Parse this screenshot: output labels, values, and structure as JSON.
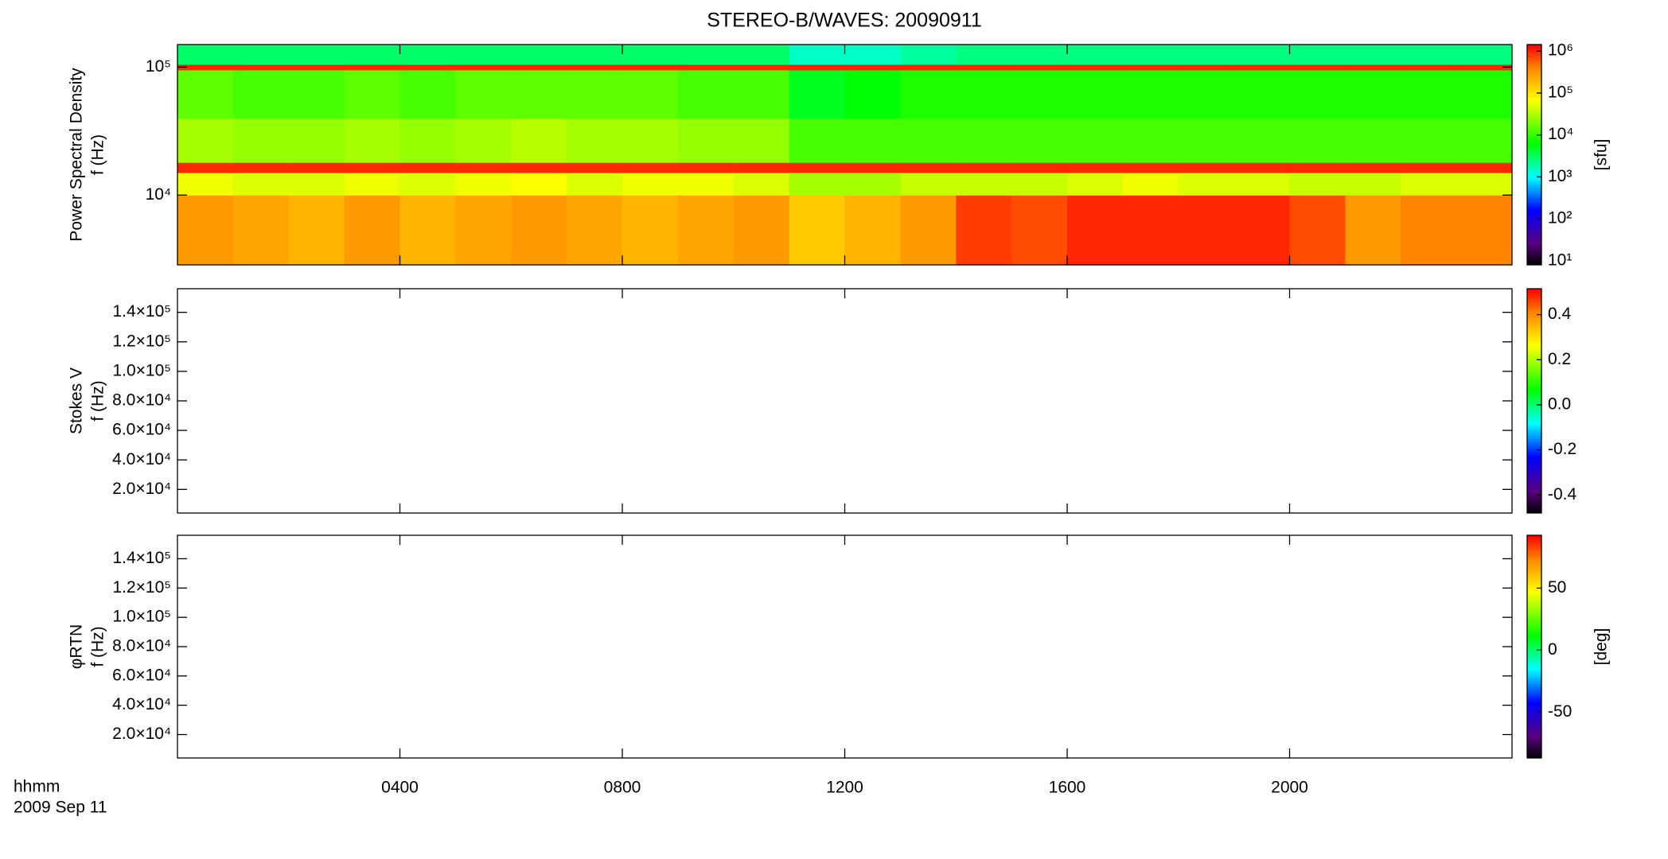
{
  "chart_data": [
    {
      "type": "spectrogram",
      "title": "STEREO-B/WAVES: 20090911",
      "ylabel": [
        "Power Spectral Density",
        "f (Hz)"
      ],
      "ylog": true,
      "ylim": [
        2850,
        150000
      ],
      "yticks": [
        {
          "value": 10000,
          "label": "10⁴"
        },
        {
          "value": 100000,
          "label": "10⁵"
        }
      ],
      "xbins": [
        0,
        1,
        2,
        3,
        4,
        5,
        6,
        7,
        8,
        9,
        10,
        11,
        12,
        13,
        14,
        15,
        16,
        17,
        18,
        19,
        20,
        21,
        22,
        23,
        24
      ],
      "ybins": [
        2850,
        10000,
        15000,
        18000,
        40000,
        95000,
        105000,
        150000
      ],
      "z": [
        [
          300000,
          250000,
          200000,
          300000,
          200000,
          250000,
          300000,
          250000,
          200000,
          250000,
          300000,
          150000,
          200000,
          300000,
          800000,
          700000,
          1000000,
          1000000,
          1000000,
          1000000,
          700000,
          300000,
          400000,
          400000
        ],
        [
          60000,
          50000,
          50000,
          60000,
          50000,
          60000,
          70000,
          50000,
          60000,
          60000,
          50000,
          30000,
          30000,
          40000,
          40000,
          40000,
          50000,
          60000,
          50000,
          50000,
          40000,
          40000,
          50000,
          50000
        ],
        [
          1000000,
          1000000,
          1000000,
          1000000,
          1000000,
          1000000,
          1000000,
          1000000,
          1000000,
          1000000,
          1000000,
          1000000,
          1000000,
          1000000,
          1000000,
          1000000,
          1000000,
          1000000,
          1000000,
          1000000,
          1000000,
          1000000,
          1000000,
          1000000
        ],
        [
          30000,
          25000,
          25000,
          30000,
          25000,
          30000,
          35000,
          30000,
          30000,
          25000,
          25000,
          12000,
          12000,
          12000,
          12000,
          12000,
          12000,
          12000,
          12000,
          12000,
          12000,
          12000,
          12000,
          12000
        ],
        [
          15000,
          12000,
          12000,
          15000,
          12000,
          15000,
          15000,
          15000,
          15000,
          12000,
          12000,
          5000,
          6000,
          8000,
          8000,
          8000,
          8000,
          8000,
          8000,
          8000,
          8000,
          8000,
          8000,
          8000
        ],
        [
          1000000,
          1000000,
          1000000,
          1000000,
          1000000,
          1000000,
          1000000,
          1000000,
          1000000,
          1000000,
          1000000,
          1000000,
          1000000,
          1000000,
          1000000,
          1000000,
          1000000,
          1000000,
          1000000,
          1000000,
          1000000,
          1000000,
          1000000,
          1000000
        ],
        [
          3000,
          3000,
          3000,
          3000,
          3000,
          3000,
          3000,
          3000,
          3000,
          3000,
          3000,
          1500,
          1500,
          2000,
          2500,
          2500,
          2500,
          2500,
          2500,
          2500,
          2500,
          2500,
          2500,
          2500
        ]
      ],
      "clog": true,
      "clim": [
        8,
        1430000
      ],
      "cticks": [
        {
          "value": 10,
          "label": "10¹"
        },
        {
          "value": 100,
          "label": "10²"
        },
        {
          "value": 1000,
          "label": "10³"
        },
        {
          "value": 10000,
          "label": "10⁴"
        },
        {
          "value": 100000,
          "label": "10⁵"
        },
        {
          "value": 1000000,
          "label": "10⁶"
        }
      ],
      "cunit": "[sfu]"
    },
    {
      "type": "spectrogram",
      "ylabel": [
        "Stokes V",
        "f (Hz)"
      ],
      "ylog": false,
      "ylim": [
        4000,
        156000
      ],
      "yticks": [
        {
          "value": 20000,
          "label": "2.0×10⁴"
        },
        {
          "value": 40000,
          "label": "4.0×10⁴"
        },
        {
          "value": 60000,
          "label": "6.0×10⁴"
        },
        {
          "value": 80000,
          "label": "8.0×10⁴"
        },
        {
          "value": 100000,
          "label": "1.0×10⁵"
        },
        {
          "value": 120000,
          "label": "1.2×10⁵"
        },
        {
          "value": 140000,
          "label": "1.4×10⁵"
        }
      ],
      "clog": false,
      "clim": [
        -0.48,
        0.515
      ],
      "cticks": [
        -0.4,
        -0.2,
        {
          "value": 0,
          "label": "0.0"
        },
        0.2,
        0.4
      ]
    },
    {
      "type": "spectrogram",
      "ylabel": [
        "φRTN",
        "f (Hz)"
      ],
      "ylog": false,
      "ylim": [
        4000,
        156000
      ],
      "yticks": [
        {
          "value": 20000,
          "label": "2.0×10⁴"
        },
        {
          "value": 40000,
          "label": "4.0×10⁴"
        },
        {
          "value": 60000,
          "label": "6.0×10⁴"
        },
        {
          "value": 80000,
          "label": "8.0×10⁴"
        },
        {
          "value": 100000,
          "label": "1.0×10⁵"
        },
        {
          "value": 120000,
          "label": "1.2×10⁵"
        },
        {
          "value": 140000,
          "label": "1.4×10⁵"
        }
      ],
      "clog": false,
      "clim": [
        -87,
        92.6
      ],
      "cticks": [
        -50,
        0,
        50
      ],
      "cunit": "[deg]",
      "xlim": [
        0,
        24
      ],
      "xticks": [
        {
          "value": 4,
          "label": "0400"
        },
        {
          "value": 8,
          "label": "0800"
        },
        {
          "value": 12,
          "label": "1200"
        },
        {
          "value": 16,
          "label": "1600"
        },
        {
          "value": 20,
          "label": "2000"
        }
      ],
      "xlabel": [
        "hhmm",
        "2009 Sep 11"
      ]
    }
  ]
}
